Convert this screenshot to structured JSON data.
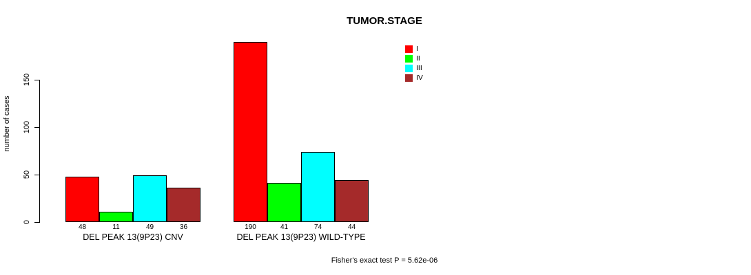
{
  "title": "TUMOR.STAGE",
  "caption": "Fisher's exact test P = 5.62e-06",
  "chart_data": {
    "type": "bar",
    "title": "TUMOR.STAGE",
    "xlabel": "",
    "ylabel": "number of cases",
    "ylim": [
      0,
      150
    ],
    "yticks": [
      0,
      50,
      100,
      150
    ],
    "grid": false,
    "legend_position": "top-right",
    "bar_value_labels_shown": true,
    "categories": [
      "DEL PEAK 13(9P23) CNV",
      "DEL PEAK 13(9P23) WILD-TYPE"
    ],
    "series": [
      {
        "name": "I",
        "color": "#FF0000",
        "values": [
          48,
          190
        ]
      },
      {
        "name": "II",
        "color": "#00FF00",
        "values": [
          11,
          41
        ]
      },
      {
        "name": "III",
        "color": "#00FFFF",
        "values": [
          49,
          74
        ]
      },
      {
        "name": "IV",
        "color": "#A52A2A",
        "values": [
          36,
          44
        ]
      }
    ],
    "annotation": "Fisher's exact test P = 5.62e-06"
  }
}
